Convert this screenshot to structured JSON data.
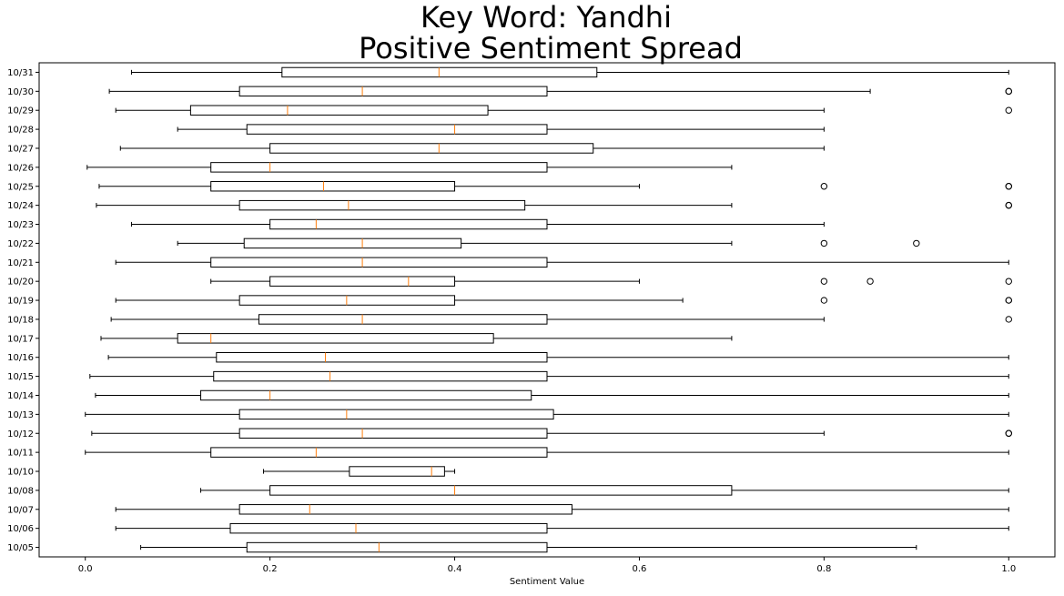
{
  "chart_data": {
    "type": "boxplot",
    "orientation": "horizontal",
    "title_lines": [
      "Key Word: Yandhi",
      "Positive Sentiment Spread"
    ],
    "xlabel": "Sentiment Value",
    "ylabel": "",
    "xlim": [
      -0.05,
      1.05
    ],
    "x_ticks": [
      0.0,
      0.2,
      0.4,
      0.6,
      0.8,
      1.0
    ],
    "x_tick_labels": [
      "0.0",
      "0.2",
      "0.4",
      "0.6",
      "0.8",
      "1.0"
    ],
    "grid": false,
    "legend": "none",
    "colors": {
      "box": "#000000",
      "median": "#ff7f0e",
      "outlier": "#000000"
    },
    "categories": [
      "10/05",
      "10/06",
      "10/07",
      "10/08",
      "10/10",
      "10/11",
      "10/12",
      "10/13",
      "10/14",
      "10/15",
      "10/16",
      "10/17",
      "10/18",
      "10/19",
      "10/20",
      "10/21",
      "10/22",
      "10/23",
      "10/24",
      "10/25",
      "10/26",
      "10/27",
      "10/28",
      "10/29",
      "10/30",
      "10/31"
    ],
    "boxes": [
      {
        "label": "10/05",
        "whislo": 0.06,
        "q1": 0.175,
        "med": 0.318,
        "q3": 0.5,
        "whishi": 0.9,
        "fliers": []
      },
      {
        "label": "10/06",
        "whislo": 0.033,
        "q1": 0.157,
        "med": 0.293,
        "q3": 0.5,
        "whishi": 1.0,
        "fliers": []
      },
      {
        "label": "10/07",
        "whislo": 0.033,
        "q1": 0.167,
        "med": 0.243,
        "q3": 0.527,
        "whishi": 1.0,
        "fliers": []
      },
      {
        "label": "10/08",
        "whislo": 0.125,
        "q1": 0.2,
        "med": 0.4,
        "q3": 0.7,
        "whishi": 1.0,
        "fliers": []
      },
      {
        "label": "10/10",
        "whislo": 0.193,
        "q1": 0.286,
        "med": 0.375,
        "q3": 0.389,
        "whishi": 0.4,
        "fliers": []
      },
      {
        "label": "10/11",
        "whislo": 0.0,
        "q1": 0.136,
        "med": 0.25,
        "q3": 0.5,
        "whishi": 1.0,
        "fliers": []
      },
      {
        "label": "10/12",
        "whislo": 0.007,
        "q1": 0.167,
        "med": 0.3,
        "q3": 0.5,
        "whishi": 0.8,
        "fliers": [
          1.0,
          1.0
        ]
      },
      {
        "label": "10/13",
        "whislo": 0.0,
        "q1": 0.167,
        "med": 0.283,
        "q3": 0.507,
        "whishi": 1.0,
        "fliers": []
      },
      {
        "label": "10/14",
        "whislo": 0.011,
        "q1": 0.125,
        "med": 0.2,
        "q3": 0.483,
        "whishi": 1.0,
        "fliers": []
      },
      {
        "label": "10/15",
        "whislo": 0.005,
        "q1": 0.139,
        "med": 0.265,
        "q3": 0.5,
        "whishi": 1.0,
        "fliers": []
      },
      {
        "label": "10/16",
        "whislo": 0.025,
        "q1": 0.142,
        "med": 0.26,
        "q3": 0.5,
        "whishi": 1.0,
        "fliers": []
      },
      {
        "label": "10/17",
        "whislo": 0.017,
        "q1": 0.1,
        "med": 0.136,
        "q3": 0.442,
        "whishi": 0.7,
        "fliers": []
      },
      {
        "label": "10/18",
        "whislo": 0.028,
        "q1": 0.188,
        "med": 0.3,
        "q3": 0.5,
        "whishi": 0.8,
        "fliers": [
          1.0
        ]
      },
      {
        "label": "10/19",
        "whislo": 0.033,
        "q1": 0.167,
        "med": 0.283,
        "q3": 0.4,
        "whishi": 0.647,
        "fliers": [
          0.8,
          1.0,
          1.0
        ]
      },
      {
        "label": "10/20",
        "whislo": 0.136,
        "q1": 0.2,
        "med": 0.35,
        "q3": 0.4,
        "whishi": 0.6,
        "fliers": [
          0.8,
          0.85,
          1.0
        ]
      },
      {
        "label": "10/21",
        "whislo": 0.033,
        "q1": 0.136,
        "med": 0.3,
        "q3": 0.5,
        "whishi": 1.0,
        "fliers": []
      },
      {
        "label": "10/22",
        "whislo": 0.1,
        "q1": 0.172,
        "med": 0.3,
        "q3": 0.407,
        "whishi": 0.7,
        "fliers": [
          0.8,
          0.9
        ]
      },
      {
        "label": "10/23",
        "whislo": 0.05,
        "q1": 0.2,
        "med": 0.25,
        "q3": 0.5,
        "whishi": 0.8,
        "fliers": []
      },
      {
        "label": "10/24",
        "whislo": 0.012,
        "q1": 0.167,
        "med": 0.285,
        "q3": 0.476,
        "whishi": 0.7,
        "fliers": [
          1.0,
          1.0
        ]
      },
      {
        "label": "10/25",
        "whislo": 0.015,
        "q1": 0.136,
        "med": 0.258,
        "q3": 0.4,
        "whishi": 0.6,
        "fliers": [
          0.8,
          1.0,
          1.0
        ]
      },
      {
        "label": "10/26",
        "whislo": 0.002,
        "q1": 0.136,
        "med": 0.2,
        "q3": 0.5,
        "whishi": 0.7,
        "fliers": []
      },
      {
        "label": "10/27",
        "whislo": 0.038,
        "q1": 0.2,
        "med": 0.383,
        "q3": 0.55,
        "whishi": 0.8,
        "fliers": []
      },
      {
        "label": "10/28",
        "whislo": 0.1,
        "q1": 0.175,
        "med": 0.4,
        "q3": 0.5,
        "whishi": 0.8,
        "fliers": []
      },
      {
        "label": "10/29",
        "whislo": 0.033,
        "q1": 0.114,
        "med": 0.219,
        "q3": 0.436,
        "whishi": 0.8,
        "fliers": [
          1.0
        ]
      },
      {
        "label": "10/30",
        "whislo": 0.026,
        "q1": 0.167,
        "med": 0.3,
        "q3": 0.5,
        "whishi": 0.85,
        "fliers": [
          1.0,
          1.0
        ]
      },
      {
        "label": "10/31",
        "whislo": 0.05,
        "q1": 0.213,
        "med": 0.383,
        "q3": 0.554,
        "whishi": 1.0,
        "fliers": []
      }
    ]
  }
}
